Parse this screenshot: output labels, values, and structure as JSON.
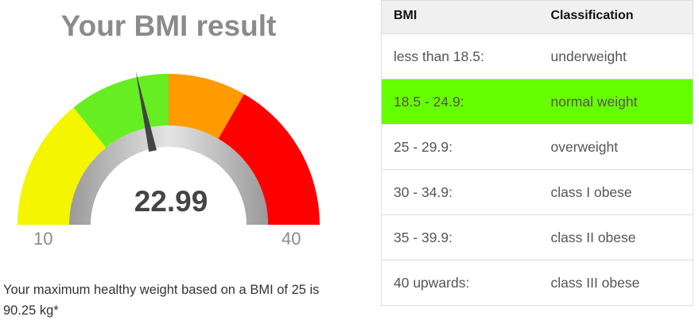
{
  "result": {
    "title": "Your BMI result",
    "bmi_value": "22.99",
    "bmi": 22.99,
    "gauge": {
      "min": 10,
      "max": 40,
      "min_label": "10",
      "max_label": "40",
      "bands": [
        {
          "from": 10,
          "to": 18.5,
          "color": "#f5f500"
        },
        {
          "from": 18.5,
          "to": 25,
          "color": "#66ee22"
        },
        {
          "from": 25,
          "to": 30,
          "color": "#ff9a00"
        },
        {
          "from": 30,
          "to": 40,
          "color": "#ff0000"
        }
      ],
      "needle_color": "#444444"
    },
    "note": "Your maximum healthy weight based on a BMI of 25 is 90.25 kg*"
  },
  "table": {
    "headers": {
      "bmi": "BMI",
      "classification": "Classification"
    },
    "rows": [
      {
        "bmi": "less than 18.5:",
        "classification": "underweight",
        "highlight": false
      },
      {
        "bmi": "18.5 - 24.9:",
        "classification": "normal weight",
        "highlight": true
      },
      {
        "bmi": "25 - 29.9:",
        "classification": "overweight",
        "highlight": false
      },
      {
        "bmi": "30 - 34.9:",
        "classification": "class I obese",
        "highlight": false
      },
      {
        "bmi": "35 - 39.9:",
        "classification": "class II obese",
        "highlight": false
      },
      {
        "bmi": "40 upwards:",
        "classification": "class III obese",
        "highlight": false
      }
    ],
    "highlight_color": "#66ff00"
  }
}
